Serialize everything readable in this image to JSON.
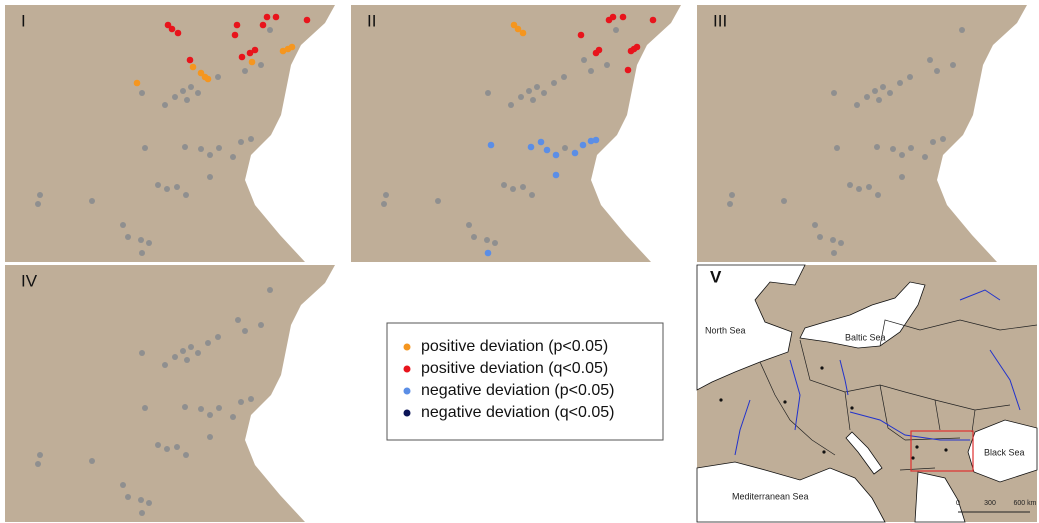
{
  "panels": [
    {
      "label": "I"
    },
    {
      "label": "II"
    },
    {
      "label": "III"
    },
    {
      "label": "IV"
    }
  ],
  "inset": {
    "label": "V",
    "seas": [
      "North Sea",
      "Baltic Sea",
      "Black Sea",
      "Mediterranean Sea"
    ],
    "scale": [
      "0",
      "300",
      "600 km"
    ]
  },
  "legend": [
    {
      "label": "positive deviation (p<0.05)",
      "color": "#f5961f"
    },
    {
      "label": "positive deviation (q<0.05)",
      "color": "#e8141c"
    },
    {
      "label": "negative deviation (p<0.05)",
      "color": "#5b8ee6"
    },
    {
      "label": "negative deviation (q<0.05)",
      "color": "#0b1457"
    }
  ]
}
